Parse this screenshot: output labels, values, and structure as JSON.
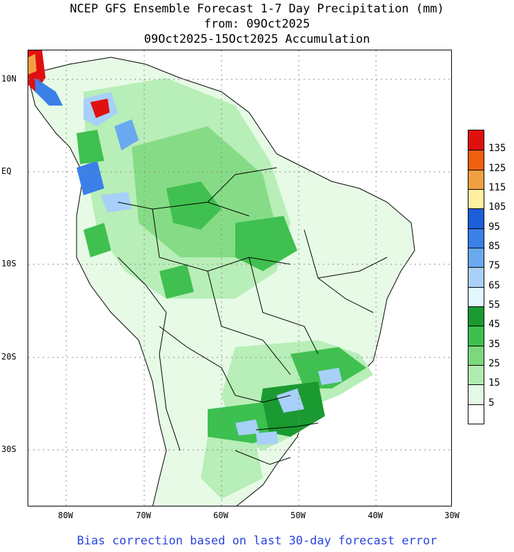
{
  "title_lines": [
    "NCEP GFS Ensemble Forecast 1-7 Day Precipitation (mm)",
    "from: 09Oct2025",
    "09Oct2025-15Oct2025 Accumulation"
  ],
  "footer": "Bias correction based on last 30-day forecast error",
  "lat_labels": [
    "10N",
    "EQ",
    "10S",
    "20S",
    "30S"
  ],
  "lon_labels": [
    "80W",
    "70W",
    "60W",
    "50W",
    "40W",
    "30W"
  ],
  "legend": {
    "labels": [
      "135",
      "125",
      "115",
      "105",
      "95",
      "85",
      "75",
      "65",
      "55",
      "45",
      "35",
      "25",
      "15",
      "5"
    ],
    "colors": [
      "#e01010",
      "#f06010",
      "#f0a040",
      "#fff0a0",
      "#1a5ed8",
      "#3a80e8",
      "#6aa8f0",
      "#a8d0f8",
      "#e0f8ff",
      "#1a9a30",
      "#3cc050",
      "#7cd87c",
      "#b0ecb0",
      "#e4fae4",
      "#ffffff"
    ]
  }
}
